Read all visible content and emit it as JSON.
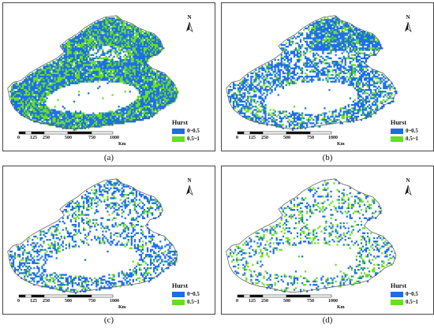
{
  "colors": {
    "low": "#1a6ee8",
    "high": "#66e01a",
    "outline": "#555555"
  },
  "legend": {
    "title": "Hurst",
    "items": [
      {
        "label": "0~0.5",
        "color": "#1a6ee8"
      },
      {
        "label": "0.5~1",
        "color": "#66e01a"
      }
    ]
  },
  "scale": {
    "ticks": [
      "0",
      "125",
      "250",
      "500",
      "750",
      "1000"
    ],
    "unit": "Km"
  },
  "north_label": "N",
  "panels": [
    {
      "caption": "(a)",
      "coverage": 0.95
    },
    {
      "caption": "(b)",
      "coverage": 0.55
    },
    {
      "caption": "(c)",
      "coverage": 0.3
    },
    {
      "caption": "(d)",
      "coverage": 0.25
    }
  ]
}
